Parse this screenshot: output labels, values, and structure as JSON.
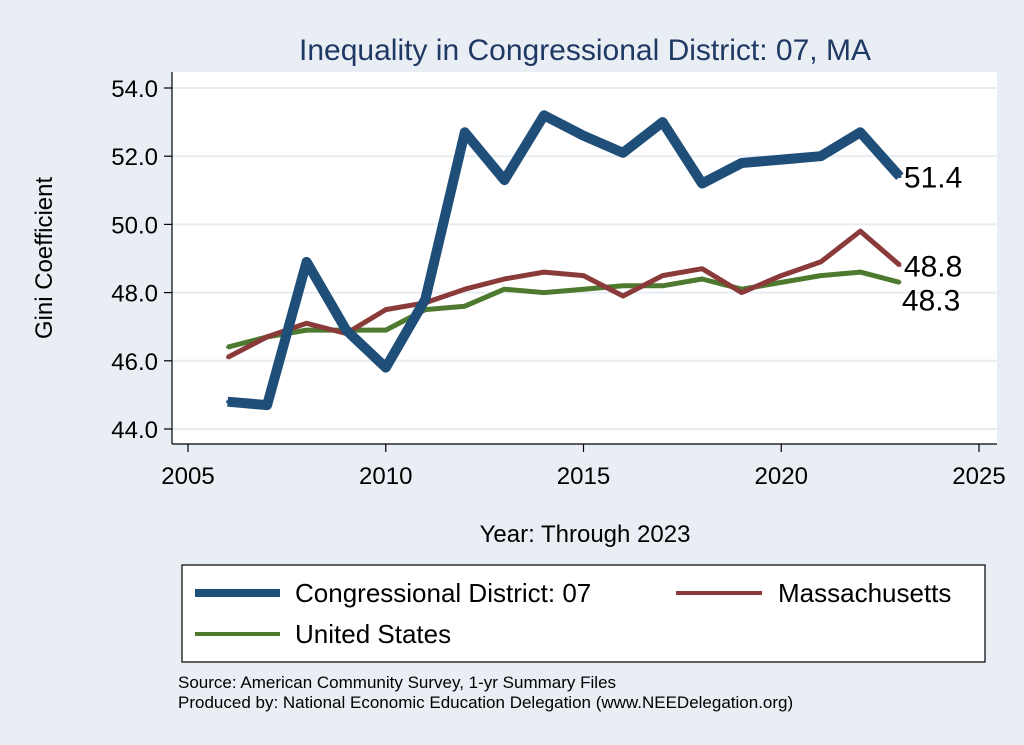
{
  "chart_data": {
    "type": "line",
    "title": "Inequality in Congressional District:  07, MA",
    "xlabel": "Year: Through 2023",
    "ylabel": "Gini Coefficient",
    "xlim": [
      2005,
      2025
    ],
    "ylim": [
      43.7,
      54.4
    ],
    "x_ticks": [
      2005,
      2010,
      2015,
      2020,
      2025
    ],
    "x_tick_labels": [
      "2005",
      "2010",
      "2015",
      "2020",
      "2025"
    ],
    "y_ticks": [
      44,
      46,
      48,
      50,
      52,
      54
    ],
    "y_tick_labels": [
      "44.0",
      "46.0",
      "48.0",
      "50.0",
      "52.0",
      "54.0"
    ],
    "grid": true,
    "series": [
      {
        "name": "Congressional District:  07",
        "color": "#1f4e79",
        "x": [
          2006,
          2007,
          2008,
          2009,
          2010,
          2011,
          2012,
          2013,
          2014,
          2015,
          2016,
          2017,
          2018,
          2019,
          2020,
          2021,
          2022,
          2023
        ],
        "values": [
          44.8,
          44.7,
          48.9,
          46.9,
          45.8,
          47.8,
          52.7,
          51.3,
          53.2,
          52.6,
          52.1,
          53.0,
          51.2,
          51.8,
          51.9,
          52.0,
          52.7,
          51.4
        ],
        "end_label": "51.4"
      },
      {
        "name": "Massachusetts",
        "color": "#8b3a3a",
        "x": [
          2006,
          2007,
          2008,
          2009,
          2010,
          2011,
          2012,
          2013,
          2014,
          2015,
          2016,
          2017,
          2018,
          2019,
          2020,
          2021,
          2022,
          2023
        ],
        "values": [
          46.1,
          46.7,
          47.1,
          46.8,
          47.5,
          47.7,
          48.1,
          48.4,
          48.6,
          48.5,
          47.9,
          48.5,
          48.7,
          48.0,
          48.5,
          48.9,
          49.8,
          48.8
        ],
        "end_label": "48.8"
      },
      {
        "name": "United States",
        "color": "#4e7a2f",
        "x": [
          2006,
          2007,
          2008,
          2009,
          2010,
          2011,
          2012,
          2013,
          2014,
          2015,
          2016,
          2017,
          2018,
          2019,
          2020,
          2021,
          2022,
          2023
        ],
        "values": [
          46.4,
          46.7,
          46.9,
          46.9,
          46.9,
          47.5,
          47.6,
          48.1,
          48.0,
          48.1,
          48.2,
          48.2,
          48.4,
          48.1,
          48.3,
          48.5,
          48.6,
          48.3
        ],
        "end_label": "48.3"
      }
    ],
    "legend": {
      "placement": "bottom",
      "entries": [
        "Congressional District:  07",
        "Massachusetts",
        "United States"
      ]
    },
    "source_lines": [
      "Source: American Community Survey, 1-yr Summary Files",
      "Produced by: National Economic Education Delegation (www.NEEDelegation.org)"
    ]
  }
}
